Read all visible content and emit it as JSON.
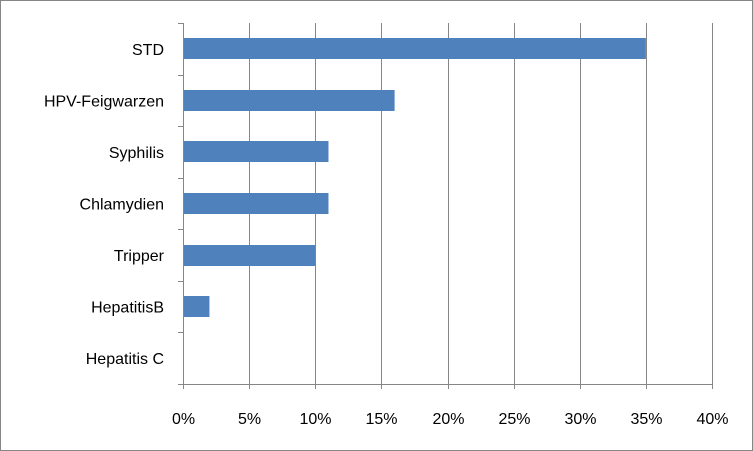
{
  "chart_data": {
    "type": "bar",
    "orientation": "horizontal",
    "categories": [
      "STD",
      "HPV-Feigwarzen",
      "Syphilis",
      "Chlamydien",
      "Tripper",
      "HepatitisB",
      "Hepatitis C"
    ],
    "values": [
      35,
      16,
      11,
      11,
      10,
      2,
      0
    ],
    "value_unit": "%",
    "xlim": [
      0,
      40
    ],
    "x_ticks": [
      "0%",
      "5%",
      "10%",
      "15%",
      "20%",
      "25%",
      "30%",
      "35%",
      "40%"
    ],
    "grid": "vertical",
    "legend": "none",
    "title": "",
    "xlabel": "",
    "ylabel": "",
    "colors": {
      "bar": "#4f81bd",
      "grid": "#868686",
      "axis": "#868686",
      "border": "#868686"
    }
  }
}
